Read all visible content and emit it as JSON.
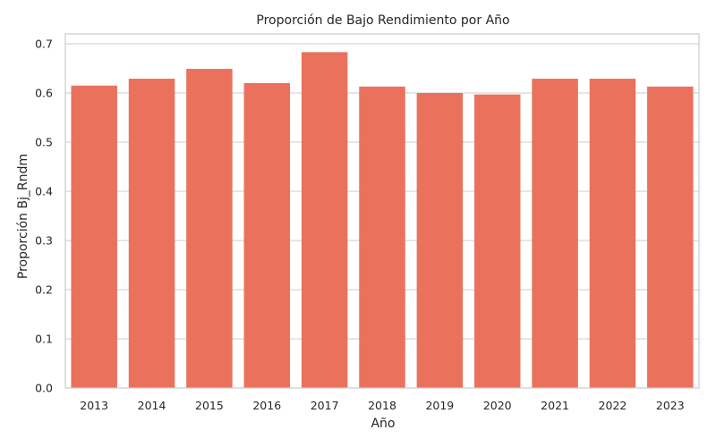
{
  "chart_data": {
    "type": "bar",
    "title": "Proporción de Bajo Rendimiento por Año",
    "xlabel": "Año",
    "ylabel": "Proporción Bj_Rndm",
    "categories": [
      "2013",
      "2014",
      "2015",
      "2016",
      "2017",
      "2018",
      "2019",
      "2020",
      "2021",
      "2022",
      "2023"
    ],
    "values": [
      0.615,
      0.629,
      0.649,
      0.62,
      0.683,
      0.613,
      0.6,
      0.597,
      0.629,
      0.629,
      0.613
    ],
    "ylim": [
      0,
      0.72
    ],
    "yticks": [
      0.0,
      0.1,
      0.2,
      0.3,
      0.4,
      0.5,
      0.6,
      0.7
    ],
    "ytick_labels": [
      "0.0",
      "0.1",
      "0.2",
      "0.3",
      "0.4",
      "0.5",
      "0.6",
      "0.7"
    ],
    "grid": true,
    "grid_axis": "y",
    "legend": null
  },
  "colors": {
    "bar": "#EA725C",
    "grid": "#cccccc",
    "axis": "#cccccc",
    "text": "#262626",
    "background": "#ffffff"
  }
}
